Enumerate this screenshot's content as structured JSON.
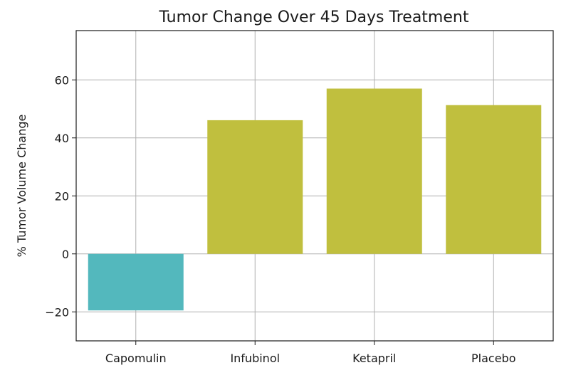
{
  "chart_data": {
    "type": "bar",
    "title": "Tumor Change Over 45 Days Treatment",
    "xlabel": "",
    "ylabel": "% Tumor Volume Change",
    "categories": [
      "Capomulin",
      "Infubinol",
      "Ketapril",
      "Placebo"
    ],
    "values": [
      -19.5,
      46.1,
      57.0,
      51.3
    ],
    "ylim": [
      -30,
      77
    ],
    "yticks": [
      -20,
      0,
      20,
      40,
      60
    ],
    "ytick_labels": [
      "−20",
      "0",
      "20",
      "40",
      "60"
    ],
    "grid": true,
    "colors": {
      "negative": "#53b8bd",
      "positive": "#c0bf3e"
    }
  }
}
